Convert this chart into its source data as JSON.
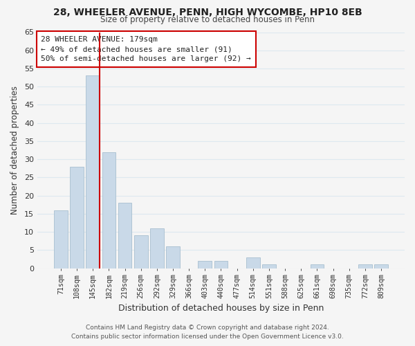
{
  "title1": "28, WHEELER AVENUE, PENN, HIGH WYCOMBE, HP10 8EB",
  "title2": "Size of property relative to detached houses in Penn",
  "xlabel": "Distribution of detached houses by size in Penn",
  "ylabel": "Number of detached properties",
  "bar_labels": [
    "71sqm",
    "108sqm",
    "145sqm",
    "182sqm",
    "219sqm",
    "256sqm",
    "292sqm",
    "329sqm",
    "366sqm",
    "403sqm",
    "440sqm",
    "477sqm",
    "514sqm",
    "551sqm",
    "588sqm",
    "625sqm",
    "661sqm",
    "698sqm",
    "735sqm",
    "772sqm",
    "809sqm"
  ],
  "bar_values": [
    16,
    28,
    53,
    32,
    18,
    9,
    11,
    6,
    0,
    2,
    2,
    0,
    3,
    1,
    0,
    0,
    1,
    0,
    0,
    1,
    1
  ],
  "bar_color": "#c9d9e8",
  "bar_edge_color": "#a8bfcf",
  "vline_index": 2,
  "vline_color": "#cc0000",
  "ylim": [
    0,
    65
  ],
  "yticks": [
    0,
    5,
    10,
    15,
    20,
    25,
    30,
    35,
    40,
    45,
    50,
    55,
    60,
    65
  ],
  "annotation_title": "28 WHEELER AVENUE: 179sqm",
  "annotation_line1": "← 49% of detached houses are smaller (91)",
  "annotation_line2": "50% of semi-detached houses are larger (92) →",
  "annotation_box_color": "#ffffff",
  "annotation_box_edge": "#cc0000",
  "footer1": "Contains HM Land Registry data © Crown copyright and database right 2024.",
  "footer2": "Contains public sector information licensed under the Open Government Licence v3.0.",
  "background_color": "#f5f5f5",
  "grid_color": "#dde8f0"
}
